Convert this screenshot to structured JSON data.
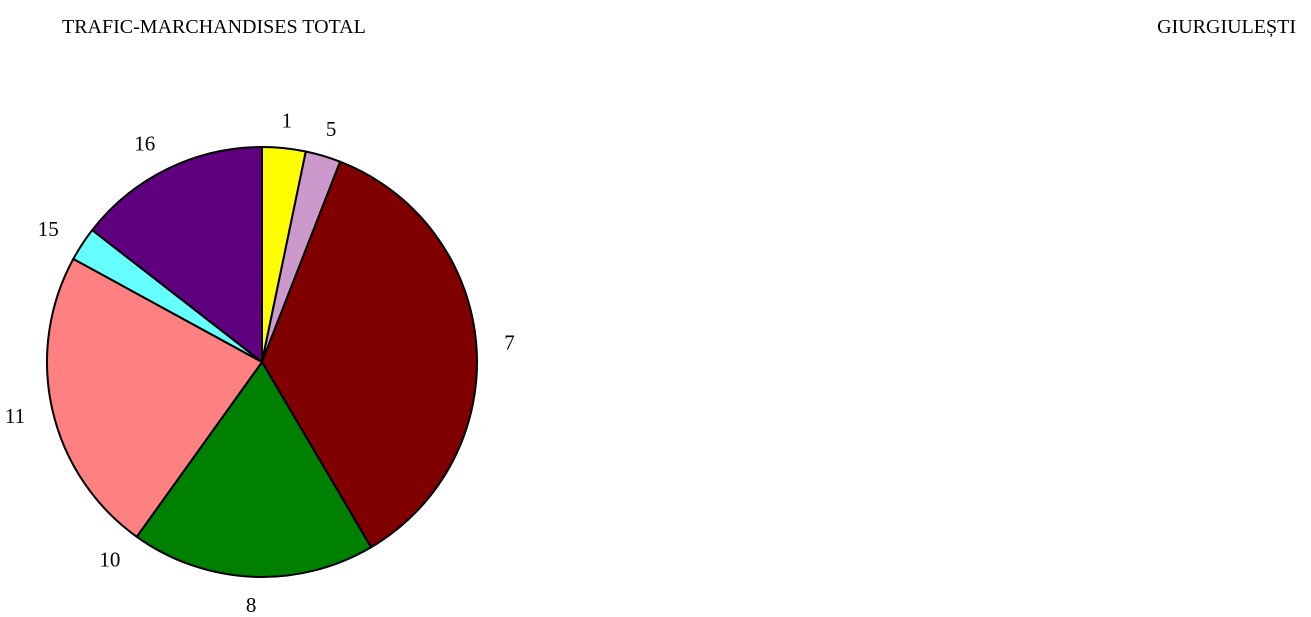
{
  "header": {
    "title": "TRAFIC-MARCHANDISES TOTAL",
    "location": "GIURGIULEȘTI"
  },
  "chart_data": {
    "type": "pie",
    "title": "TRAFIC-MARCHANDISES TOTAL",
    "subtitle": "GIURGIULEȘTI",
    "start_angle_deg": 0,
    "direction": "clockwise",
    "legend": "none",
    "slices": [
      {
        "label": "1",
        "value": 3.2,
        "color": "#FFFF00"
      },
      {
        "label": "5",
        "value": 2.6,
        "color": "#CC99CC"
      },
      {
        "label": "7",
        "value": 34.9,
        "color": "#800000"
      },
      {
        "label": "8",
        "value": 18.0,
        "color": "#008000"
      },
      {
        "label": "10",
        "value": 0.0,
        "color": "#FF8080"
      },
      {
        "label": "11",
        "value": 22.6,
        "color": "#FF8080"
      },
      {
        "label": "15",
        "value": 2.5,
        "color": "#66FFFF"
      },
      {
        "label": "16",
        "value": 14.2,
        "color": "#5F007F"
      }
    ]
  }
}
